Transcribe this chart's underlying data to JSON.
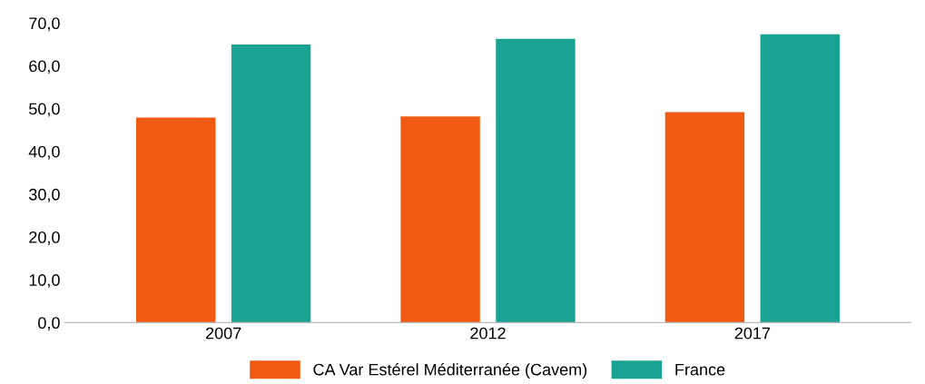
{
  "chart_data": {
    "type": "bar",
    "categories": [
      "2007",
      "2012",
      "2017"
    ],
    "series": [
      {
        "name": "CA Var Estérel Méditerranée (Cavem)",
        "color": "#f05a12",
        "values": [
          47.9,
          48.2,
          49.2
        ]
      },
      {
        "name": "France",
        "color": "#1aa393",
        "values": [
          65.0,
          66.3,
          67.4
        ]
      }
    ],
    "ylim": [
      0,
      70
    ],
    "yticks": [
      {
        "value": 0,
        "label": "0,0"
      },
      {
        "value": 10,
        "label": "10,0"
      },
      {
        "value": 20,
        "label": "20,0"
      },
      {
        "value": 30,
        "label": "30,0"
      },
      {
        "value": 40,
        "label": "40,0"
      },
      {
        "value": 50,
        "label": "50,0"
      },
      {
        "value": 60,
        "label": "60,0"
      },
      {
        "value": 70,
        "label": "70,0"
      }
    ],
    "grid": false,
    "legend": "bottom"
  }
}
